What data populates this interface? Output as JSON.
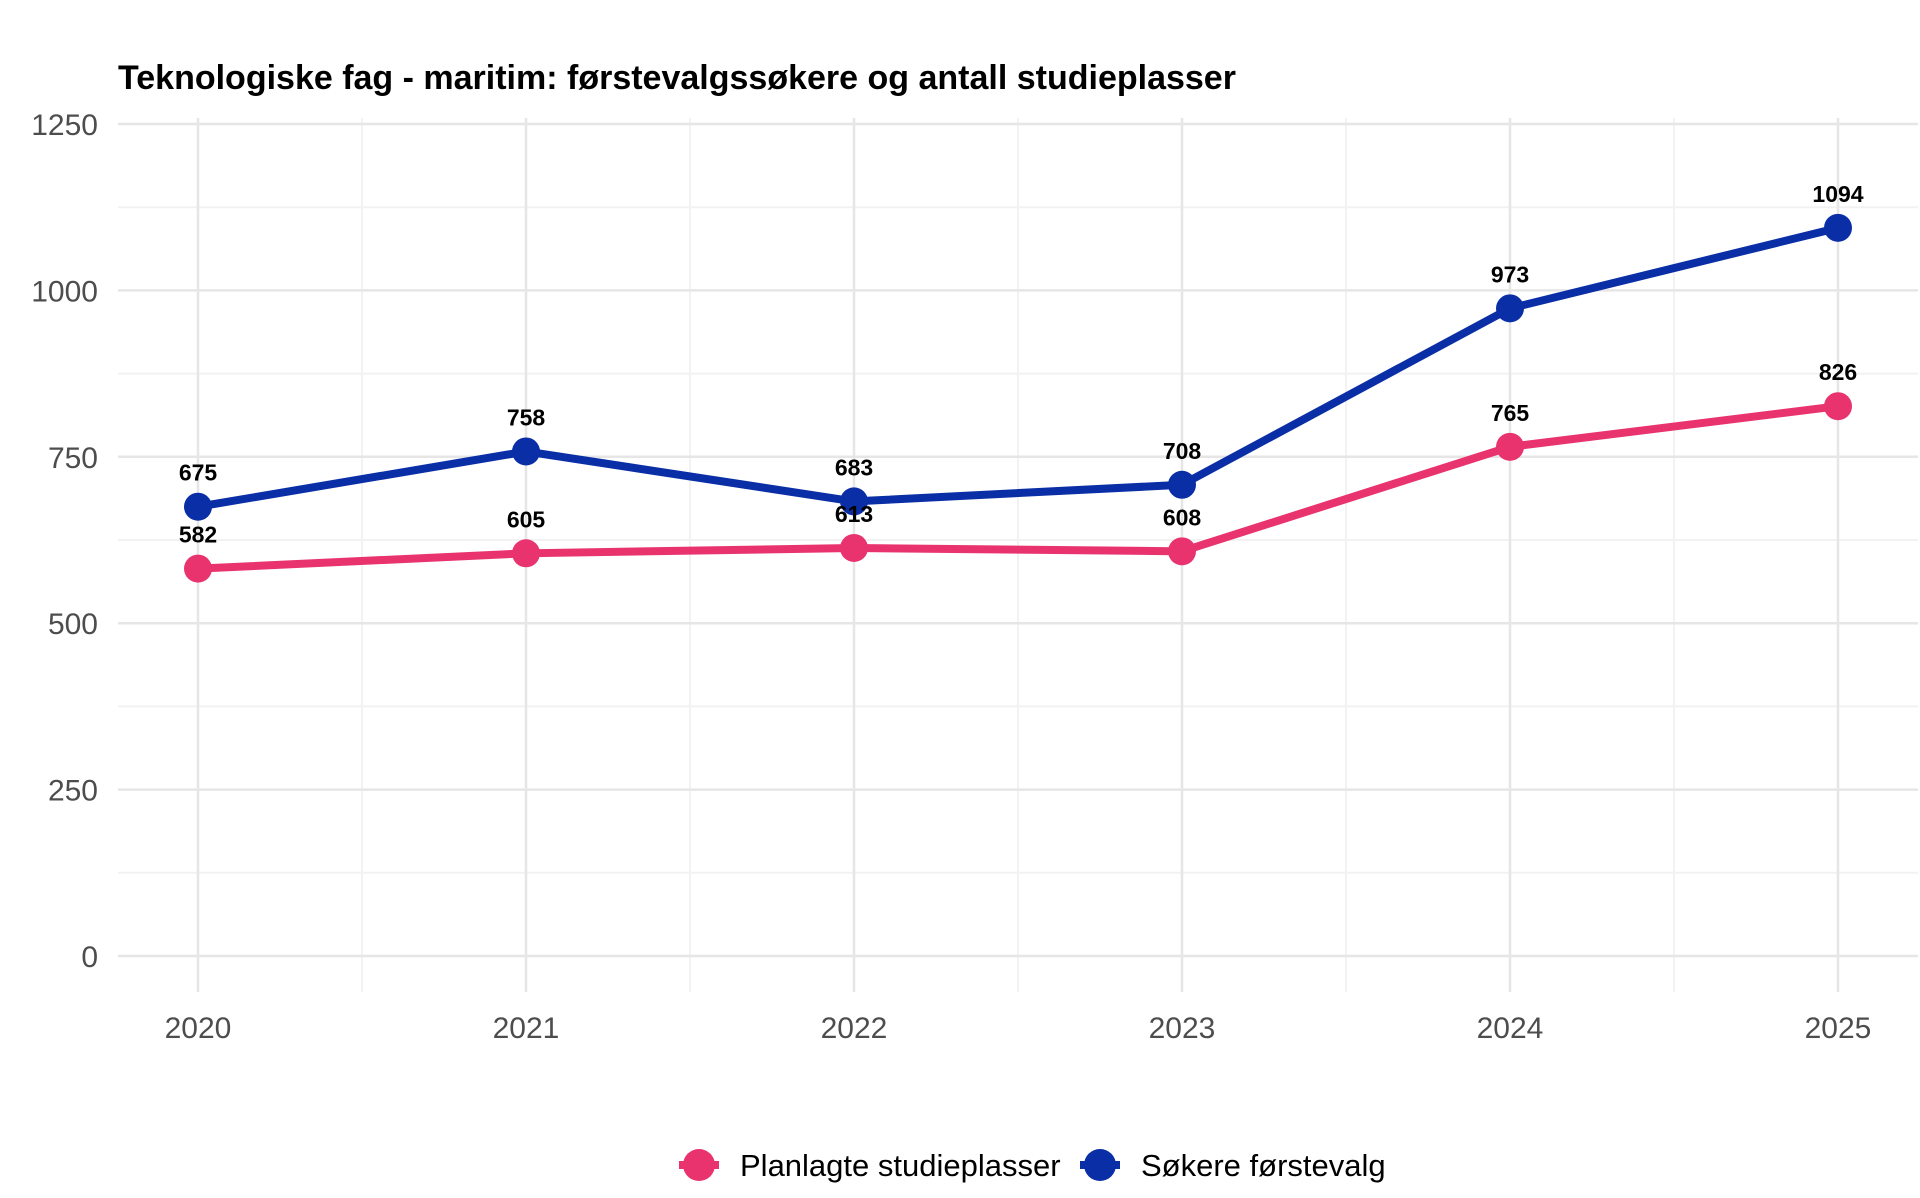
{
  "chart_data": {
    "type": "line",
    "title": "Teknologiske fag - maritim: førstevalgssøkere og antall studieplasser",
    "x": [
      "2020",
      "2021",
      "2022",
      "2023",
      "2024",
      "2025"
    ],
    "ylim": [
      0,
      1250
    ],
    "yticks": [
      "0",
      "250",
      "500",
      "750",
      "1000",
      "1250"
    ],
    "ytick_values": [
      0,
      250,
      500,
      750,
      1000,
      1250
    ],
    "grid": true,
    "legend_position": "bottom",
    "series": [
      {
        "name": "Planlagte studieplasser",
        "color": "#e8336f",
        "values": [
          582,
          605,
          613,
          608,
          765,
          826
        ],
        "labels": [
          "582",
          "605",
          "613",
          "608",
          "765",
          "826"
        ]
      },
      {
        "name": "Søkere førstevalg",
        "color": "#0a2ea6",
        "values": [
          675,
          758,
          683,
          708,
          973,
          1094
        ],
        "labels": [
          "675",
          "758",
          "683",
          "708",
          "973",
          "1094"
        ]
      }
    ]
  }
}
